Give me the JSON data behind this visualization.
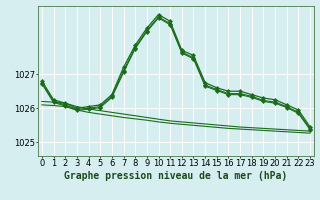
{
  "bg_color": "#d6eef0",
  "grid_color": "#ffffff",
  "line_color": "#1a6b1a",
  "title": "Graphe pression niveau de la mer (hPa)",
  "yticks": [
    1025,
    1026,
    1027
  ],
  "ylim": [
    1024.6,
    1029.0
  ],
  "xlim": [
    -0.3,
    23.3
  ],
  "xticks": [
    0,
    1,
    2,
    3,
    4,
    5,
    6,
    7,
    8,
    9,
    10,
    11,
    12,
    13,
    14,
    15,
    16,
    17,
    18,
    19,
    20,
    21,
    22,
    23
  ],
  "main_y": [
    1026.8,
    1026.25,
    1026.15,
    1026.0,
    1026.05,
    1026.1,
    1026.4,
    1027.2,
    1027.85,
    1028.35,
    1028.75,
    1028.55,
    1027.7,
    1027.55,
    1026.75,
    1026.6,
    1026.5,
    1026.5,
    1026.4,
    1026.3,
    1026.25,
    1026.1,
    1025.95,
    1025.45
  ],
  "line2_y": [
    1026.75,
    1026.2,
    1026.1,
    1025.97,
    1026.0,
    1026.05,
    1026.35,
    1027.1,
    1027.78,
    1028.28,
    1028.68,
    1028.48,
    1027.65,
    1027.48,
    1026.68,
    1026.55,
    1026.43,
    1026.43,
    1026.35,
    1026.23,
    1026.18,
    1026.05,
    1025.88,
    1025.4
  ],
  "line3_y": [
    1026.72,
    1026.17,
    1026.07,
    1025.94,
    1025.97,
    1026.02,
    1026.32,
    1027.05,
    1027.75,
    1028.25,
    1028.65,
    1028.45,
    1027.62,
    1027.45,
    1026.65,
    1026.52,
    1026.4,
    1026.4,
    1026.32,
    1026.2,
    1026.15,
    1026.02,
    1025.85,
    1025.37
  ],
  "flat1_y": [
    1026.2,
    1026.18,
    1026.15,
    1026.05,
    1025.98,
    1025.93,
    1025.88,
    1025.83,
    1025.78,
    1025.73,
    1025.68,
    1025.63,
    1025.6,
    1025.57,
    1025.54,
    1025.51,
    1025.48,
    1025.45,
    1025.43,
    1025.41,
    1025.39,
    1025.37,
    1025.35,
    1025.33
  ],
  "flat2_y": [
    1026.1,
    1026.08,
    1026.05,
    1025.95,
    1025.88,
    1025.83,
    1025.78,
    1025.73,
    1025.69,
    1025.65,
    1025.6,
    1025.56,
    1025.53,
    1025.5,
    1025.47,
    1025.44,
    1025.41,
    1025.39,
    1025.37,
    1025.35,
    1025.33,
    1025.31,
    1025.29,
    1025.27
  ],
  "title_fontsize": 7.0,
  "tick_fontsize": 6.0
}
